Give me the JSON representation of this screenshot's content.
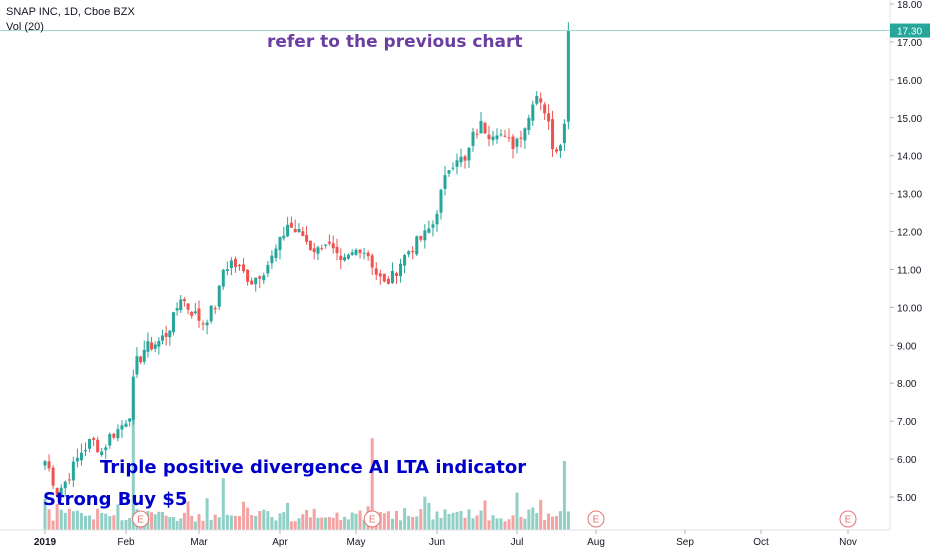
{
  "header": {
    "symbol_line": "SNAP INC, 1D, Cboe BZX",
    "volume_line": "Vol (20)"
  },
  "annotations": {
    "top": "refer to the previous chart",
    "middle": "Triple positive divergence AI LTA indicator",
    "bottom": "Strong Buy $5"
  },
  "colors": {
    "up": "#26a69a",
    "down": "#ef5350",
    "vol_up": "#8fcfc6",
    "vol_down": "#f3a3a1",
    "annotation_top": "#6a3fa0",
    "annotation_blue": "#0000cc",
    "last_price_bg": "#26a69a",
    "last_price_line": "#9fd9d2",
    "earnings_marker": "#e57373"
  },
  "chart_data": {
    "type": "candlestick",
    "title": "SNAP INC, 1D, Cboe BZX",
    "ylim": [
      4.2,
      18.3
    ],
    "y_ticks": [
      "5.00",
      "6.00",
      "7.00",
      "8.00",
      "9.00",
      "10.00",
      "11.00",
      "12.00",
      "13.00",
      "14.00",
      "15.00",
      "16.00",
      "17.00",
      "18.00"
    ],
    "x_ticks": [
      "2019",
      "Feb",
      "Mar",
      "Apr",
      "May",
      "Jun",
      "Jul",
      "Aug",
      "Sep",
      "Oct",
      "Nov"
    ],
    "last_price_label": "17.30",
    "last_price": 17.3,
    "earnings_marker_label": "E",
    "earnings_markers_month_offsets": [
      1.2,
      4.2,
      7.0,
      10.2
    ],
    "legend": [
      "Vol (20)"
    ],
    "grid": false,
    "path": [
      [
        0.0,
        5.95
      ],
      [
        0.08,
        5.6
      ],
      [
        0.14,
        5.1
      ],
      [
        0.25,
        5.4
      ],
      [
        0.35,
        5.8
      ],
      [
        0.45,
        6.2
      ],
      [
        0.58,
        6.5
      ],
      [
        0.7,
        6.2
      ],
      [
        0.8,
        6.6
      ],
      [
        0.92,
        6.8
      ],
      [
        1.0,
        7.05
      ],
      [
        1.07,
        7.3
      ],
      [
        1.12,
        8.5
      ],
      [
        1.18,
        8.6
      ],
      [
        1.25,
        8.9
      ],
      [
        1.35,
        9.0
      ],
      [
        1.45,
        9.1
      ],
      [
        1.55,
        9.3
      ],
      [
        1.65,
        9.7
      ],
      [
        1.75,
        10.3
      ],
      [
        1.85,
        10.0
      ],
      [
        1.95,
        9.8
      ],
      [
        2.05,
        9.6
      ],
      [
        2.15,
        9.9
      ],
      [
        2.22,
        10.1
      ],
      [
        2.3,
        11.0
      ],
      [
        2.4,
        11.2
      ],
      [
        2.55,
        10.9
      ],
      [
        2.65,
        10.7
      ],
      [
        2.8,
        11.0
      ],
      [
        2.9,
        11.3
      ],
      [
        3.0,
        11.7
      ],
      [
        3.1,
        12.2
      ],
      [
        3.2,
        12.0
      ],
      [
        3.3,
        11.9
      ],
      [
        3.4,
        11.6
      ],
      [
        3.5,
        11.5
      ],
      [
        3.58,
        11.8
      ],
      [
        3.68,
        11.5
      ],
      [
        3.8,
        11.1
      ],
      [
        3.95,
        11.4
      ],
      [
        4.05,
        11.6
      ],
      [
        4.15,
        11.4
      ],
      [
        4.25,
        10.9
      ],
      [
        4.35,
        10.6
      ],
      [
        4.45,
        10.8
      ],
      [
        4.55,
        11.2
      ],
      [
        4.65,
        11.5
      ],
      [
        4.75,
        11.7
      ],
      [
        4.85,
        11.9
      ],
      [
        4.95,
        12.2
      ],
      [
        5.05,
        13.0
      ],
      [
        5.15,
        13.7
      ],
      [
        5.25,
        14.0
      ],
      [
        5.35,
        13.8
      ],
      [
        5.45,
        14.5
      ],
      [
        5.55,
        14.8
      ],
      [
        5.65,
        14.6
      ],
      [
        5.75,
        14.7
      ],
      [
        5.85,
        14.4
      ],
      [
        5.95,
        14.3
      ],
      [
        6.05,
        14.6
      ],
      [
        6.15,
        15.0
      ],
      [
        6.22,
        15.7
      ],
      [
        6.3,
        15.5
      ],
      [
        6.38,
        15.0
      ],
      [
        6.45,
        14.3
      ],
      [
        6.52,
        14.2
      ],
      [
        6.58,
        14.7
      ],
      [
        6.62,
        14.9
      ],
      [
        6.65,
        16.2
      ],
      [
        6.68,
        17.3
      ]
    ],
    "volume_spikes": [
      [
        1.1,
        7.55
      ],
      [
        4.2,
        6.55
      ],
      [
        2.32,
        5.5
      ],
      [
        6.62,
        5.95
      ]
    ]
  }
}
